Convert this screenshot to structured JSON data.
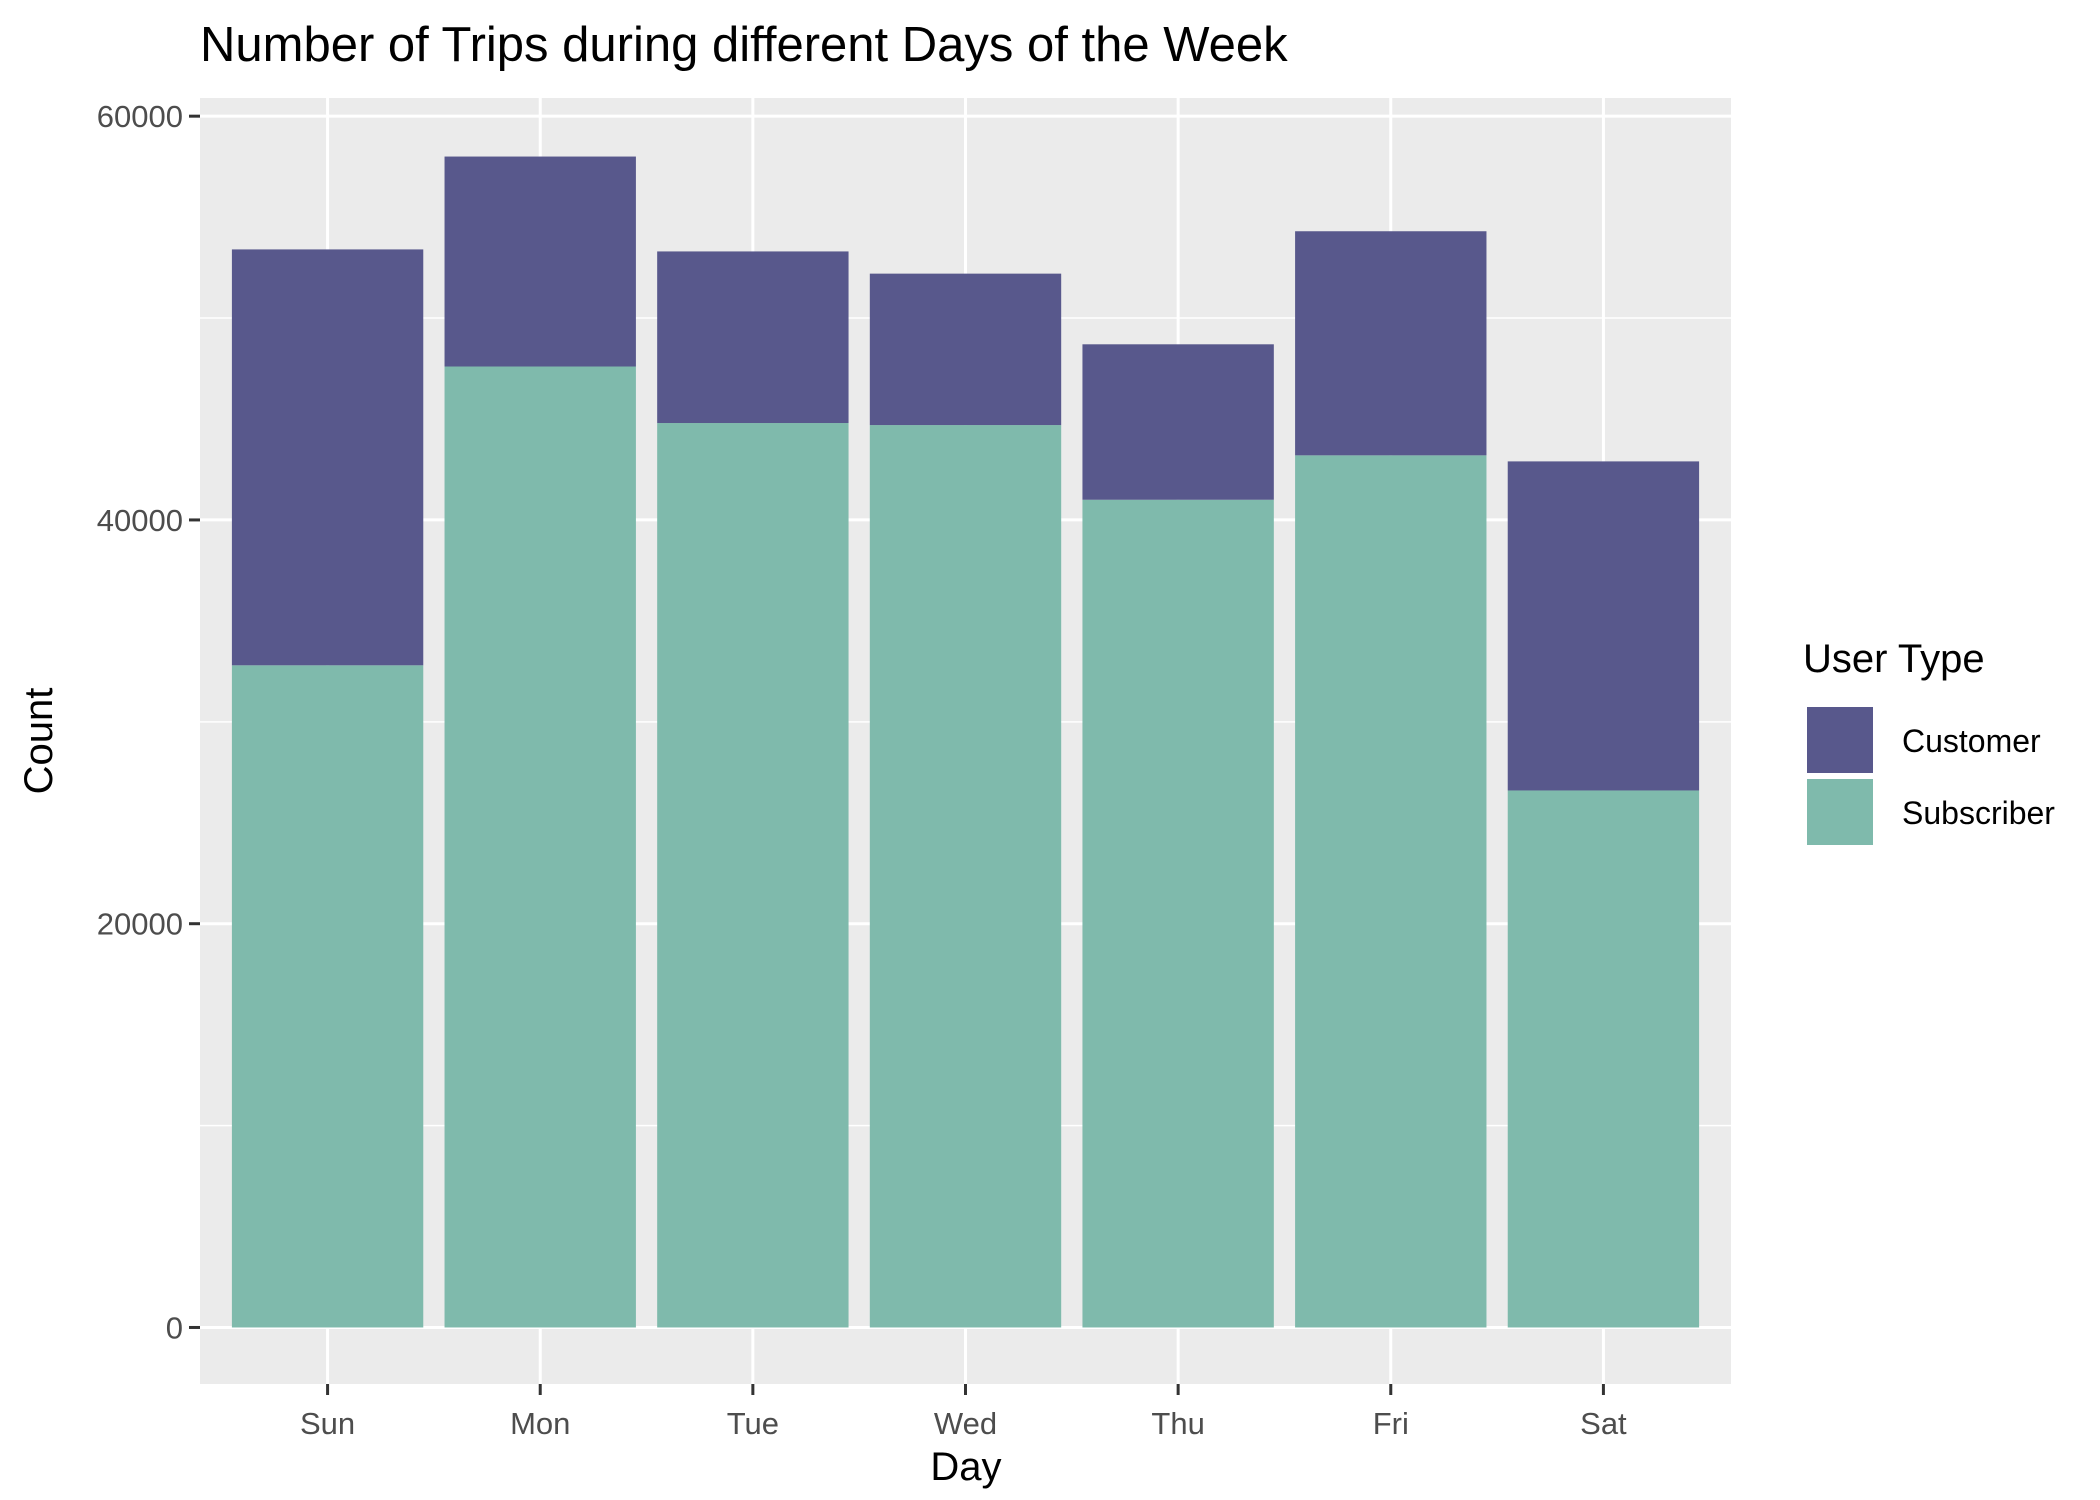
{
  "chart_data": {
    "type": "bar",
    "stacked": true,
    "title": "Number of Trips during different Days of the Week",
    "xlabel": "Day",
    "ylabel": "Count",
    "categories": [
      "Sun",
      "Mon",
      "Tue",
      "Wed",
      "Thu",
      "Fri",
      "Sat"
    ],
    "series": [
      {
        "name": "Subscriber",
        "values": [
          32800,
          47600,
          44800,
          44700,
          41000,
          43200,
          26600
        ],
        "color": "#7fbaac"
      },
      {
        "name": "Customer",
        "values": [
          20600,
          10400,
          8500,
          7500,
          7700,
          11100,
          16300
        ],
        "color": "#58588c"
      }
    ],
    "ylim": [
      -2800,
      60900
    ],
    "yticks": [
      0,
      20000,
      40000,
      60000
    ],
    "ytick_labels": [
      "0",
      "20000",
      "40000",
      "60000"
    ],
    "grid": true,
    "panel_background": "#ebebeb",
    "grid_color": "#ffffff",
    "legend": {
      "title": "User Type",
      "placement": "right",
      "items": [
        "Customer",
        "Subscriber"
      ]
    }
  }
}
